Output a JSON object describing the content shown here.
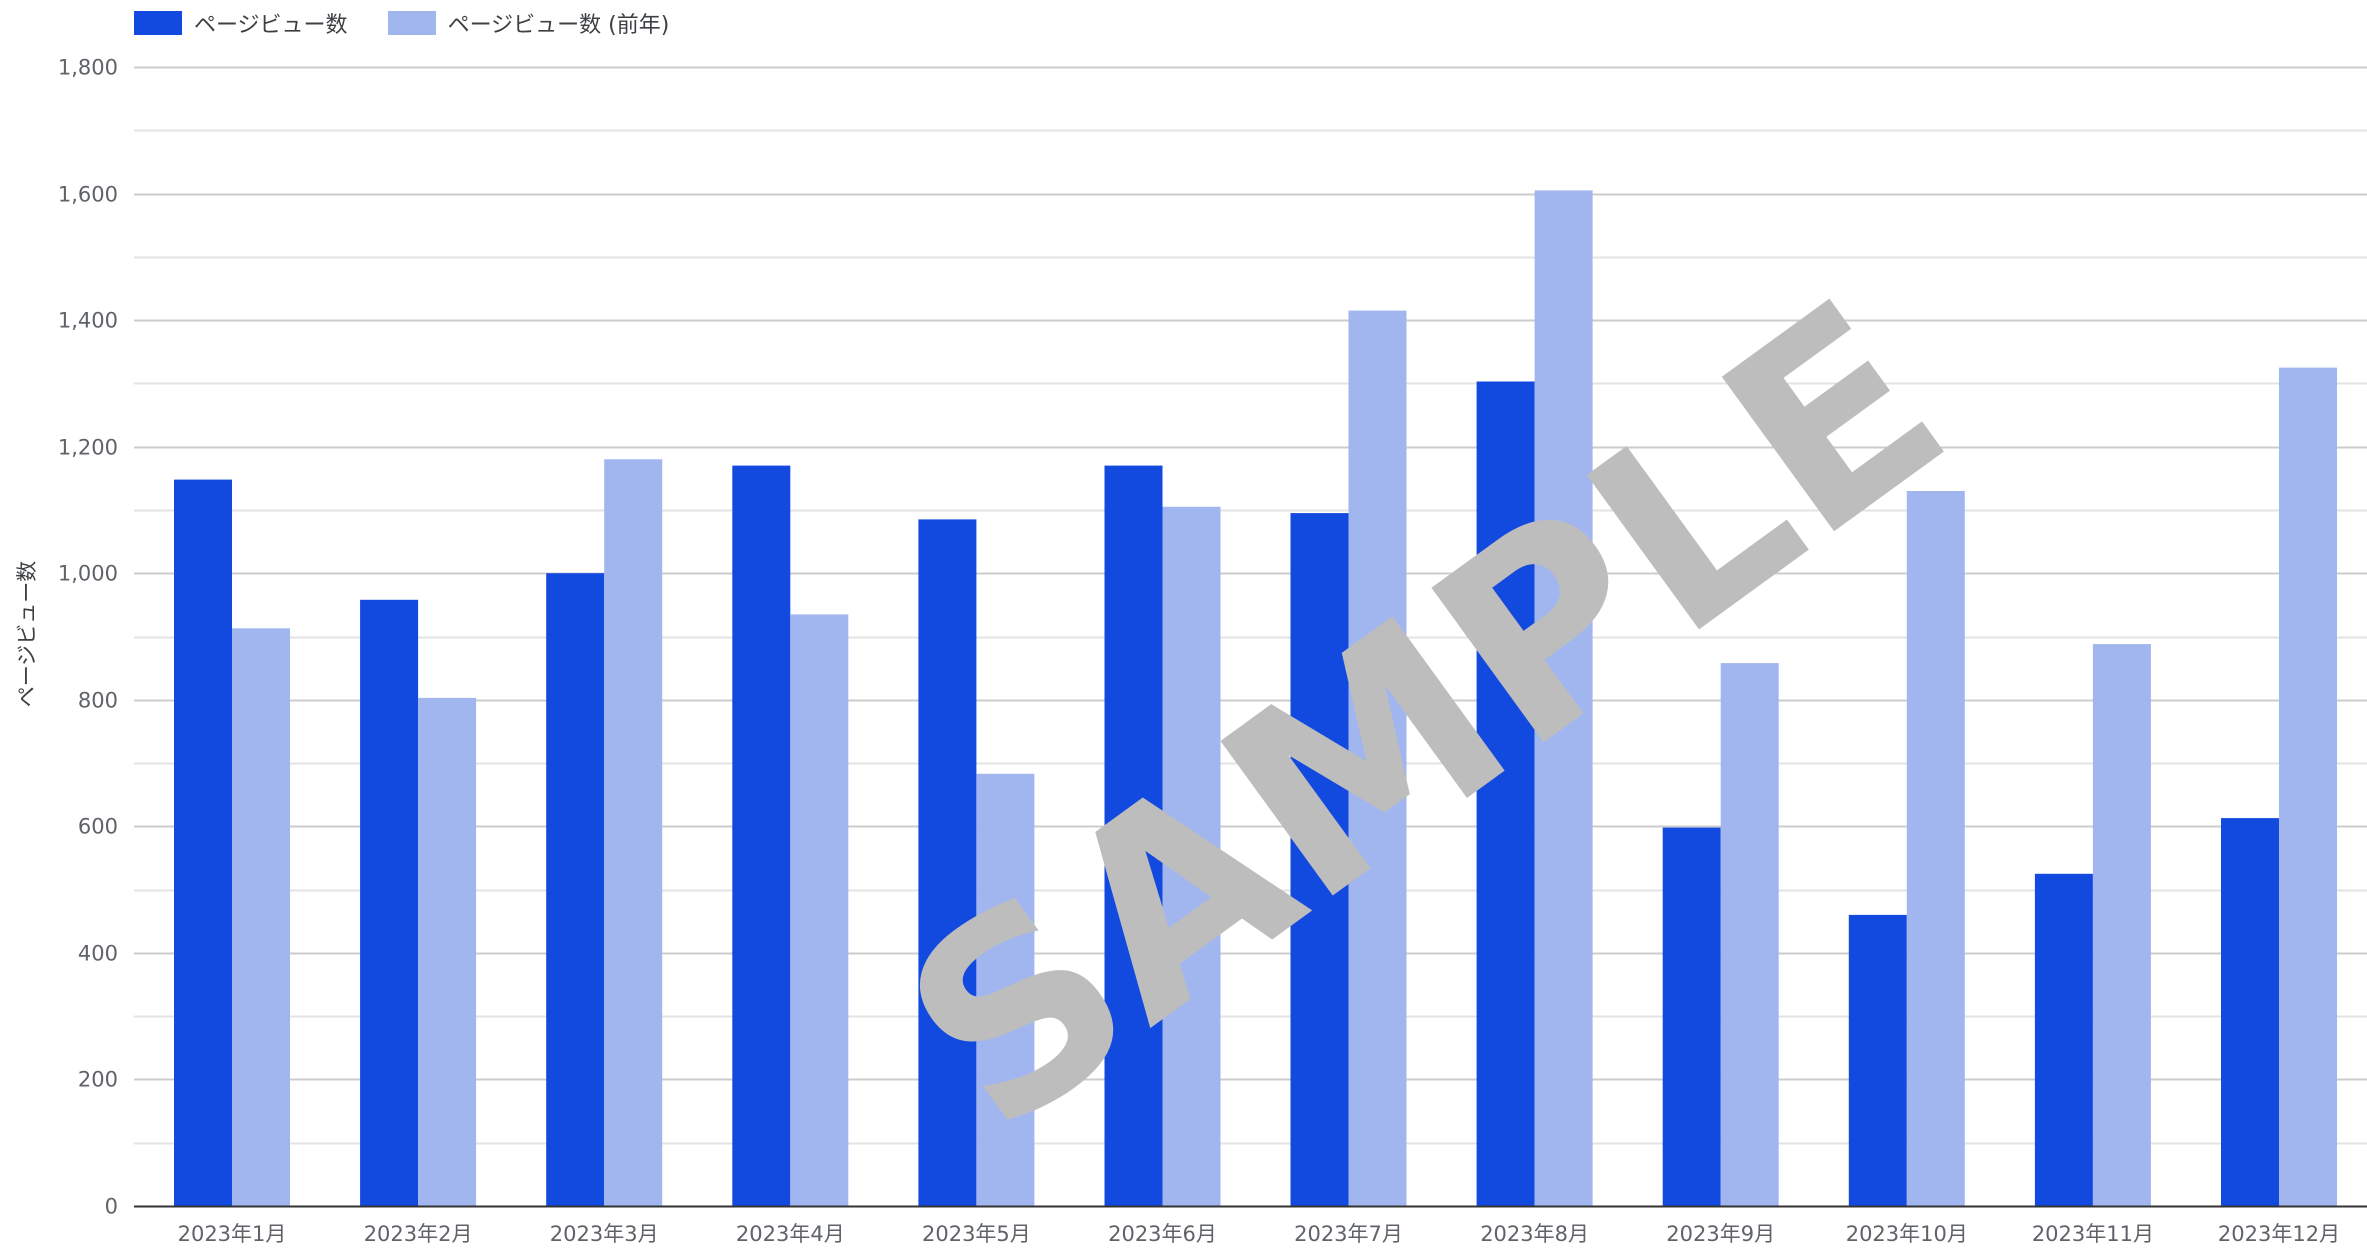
{
  "legend": {
    "items": [
      {
        "label": "ページビュー数",
        "color": "#1249df"
      },
      {
        "label": "ページビュー数 (前年)",
        "color": "#a1b6ef"
      }
    ]
  },
  "watermark": "SAMPLE",
  "chart_data": {
    "type": "bar",
    "title": "",
    "xlabel": "",
    "ylabel": "ページビュー数",
    "ylim": [
      0,
      1800
    ],
    "yticks": [
      0,
      200,
      400,
      600,
      800,
      1000,
      1200,
      1400,
      1600,
      1800
    ],
    "ytick_labels": [
      "0",
      "200",
      "400",
      "600",
      "800",
      "1,000",
      "1,200",
      "1,400",
      "1,600",
      "1,800"
    ],
    "grid": true,
    "legend_position": "top-left",
    "categories": [
      "2023年1月",
      "2023年2月",
      "2023年3月",
      "2023年4月",
      "2023年5月",
      "2023年6月",
      "2023年7月",
      "2023年8月",
      "2023年9月",
      "2023年10月",
      "2023年11月",
      "2023年12月"
    ],
    "series": [
      {
        "name": "ページビュー数",
        "color": "#1249df",
        "values": [
          1148,
          958,
          1000,
          1170,
          1085,
          1170,
          1095,
          1303,
          598,
          460,
          525,
          613
        ]
      },
      {
        "name": "ページビュー数 (前年)",
        "color": "#a1b6ef",
        "values": [
          913,
          803,
          1180,
          935,
          683,
          1105,
          1415,
          1605,
          858,
          1130,
          888,
          1325
        ]
      }
    ]
  }
}
